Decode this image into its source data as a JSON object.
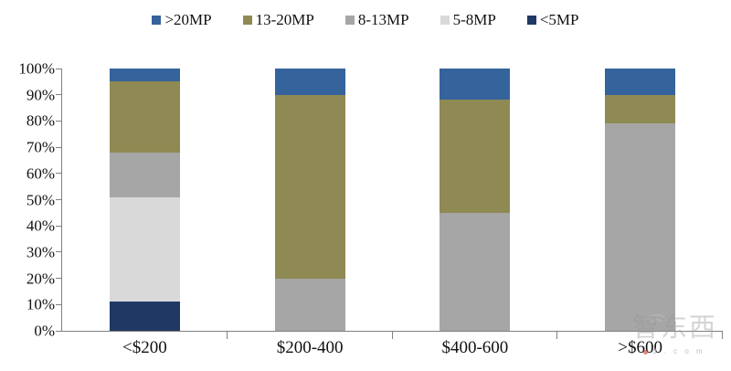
{
  "chart_data": {
    "type": "bar",
    "subtype": "stacked-100-percent",
    "title": "",
    "xlabel": "",
    "ylabel": "",
    "ylim": [
      0,
      100
    ],
    "grid": false,
    "legend_position": "top-center",
    "categories": [
      "<$200",
      "$200-400",
      "$400-600",
      ">$600"
    ],
    "y_ticks": [
      "0%",
      "10%",
      "20%",
      "30%",
      "40%",
      "50%",
      "60%",
      "70%",
      "80%",
      "90%",
      "100%"
    ],
    "series": [
      {
        "name": "<5MP",
        "color": "#1F3864",
        "values": [
          11,
          0,
          0,
          0
        ]
      },
      {
        "name": "5-8MP",
        "color": "#D9D9D9",
        "values": [
          40,
          0,
          0,
          0
        ]
      },
      {
        "name": "8-13MP",
        "color": "#A6A6A6",
        "values": [
          17,
          20,
          45,
          79
        ]
      },
      {
        "name": "13-20MP",
        "color": "#8F8A54",
        "values": [
          27,
          70,
          43,
          11
        ]
      },
      {
        "name": ">20MP",
        "color": "#35639B",
        "values": [
          5,
          10,
          12,
          10
        ]
      }
    ]
  },
  "legend": {
    "items": [
      {
        "label": ">20MP",
        "color": "#35639B"
      },
      {
        "label": "13-20MP",
        "color": "#8F8A54"
      },
      {
        "label": "8-13MP",
        "color": "#A6A6A6"
      },
      {
        "label": "5-8MP",
        "color": "#D9D9D9"
      },
      {
        "label": "<5MP",
        "color": "#1F3864"
      }
    ]
  },
  "axis": {
    "line_color": "#808080",
    "text_color": "#111111"
  },
  "watermark": {
    "text": "智东西",
    "subtext": "d . c o m",
    "accent_color": "#e05a4e"
  }
}
